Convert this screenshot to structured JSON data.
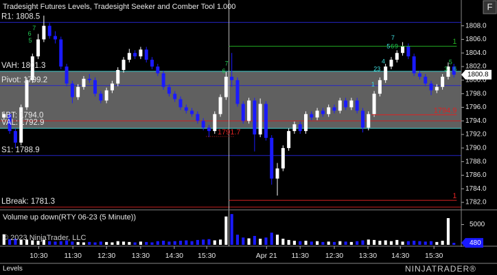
{
  "chart_data": {
    "type": "candlestick",
    "title": "Tradesight Futures Levels, Tradesight Seeker and Comber Tool 1.000",
    "volume_title": "Volume up down(RTY 06-23 (5 Minute))",
    "copyright": "© 2023 NinjaTrader, LLC",
    "tab": "Levels",
    "button": "F",
    "logo": "NINJATRADER®",
    "up_color": "#ffffff",
    "down_color": "#1a1aff",
    "open": [
      1794.5,
      1795.0,
      1792.5,
      1790.8,
      1796.0,
      1800.0,
      1803.5,
      1806.0,
      1808.0,
      1806.5,
      1806.0,
      1802.0,
      1799.5,
      1797.5,
      1799.0,
      1800.2,
      1800.0,
      1798.0,
      1797.0,
      1798.5,
      1799.5,
      1801.5,
      1803.0,
      1804.0,
      1803.5,
      1804.5,
      1803.0,
      1802.0,
      1801.0,
      1799.0,
      1798.0,
      1797.2,
      1796.0,
      1795.5,
      1795.0,
      1794.0,
      1793.0,
      1792.5,
      1795.0,
      1797.5,
      1800.5,
      1800.0,
      1796.5,
      1794.0,
      1797.0,
      1792.0,
      1796.5,
      1791.5,
      1785.5,
      1787.0,
      1790.0,
      1792.5,
      1793.5,
      1792.5,
      1795.0,
      1794.5,
      1795.5,
      1795.0,
      1796.0,
      1795.5,
      1797.0,
      1796.0,
      1797.0,
      1795.5,
      1793.0,
      1795.0,
      1798.0,
      1800.0,
      1802.0,
      1803.0,
      1804.0,
      1805.0,
      1803.5,
      1801.0,
      1800.5,
      1799.5,
      1798.5,
      1799.0,
      1800.5,
      1802.0
    ],
    "high": [
      1795.4,
      1795.4,
      1792.9,
      1796.4,
      1800.4,
      1803.9,
      1806.8,
      1809.5,
      1808.4,
      1807.2,
      1806.4,
      1802.4,
      1799.9,
      1799.4,
      1800.6,
      1800.9,
      1800.4,
      1798.4,
      1798.9,
      1799.9,
      1801.9,
      1803.4,
      1804.6,
      1804.4,
      1804.9,
      1804.9,
      1803.4,
      1802.4,
      1801.4,
      1799.4,
      1798.4,
      1797.6,
      1796.4,
      1795.9,
      1795.4,
      1794.4,
      1793.4,
      1795.4,
      1797.9,
      1801.2,
      1804.0,
      1800.4,
      1796.9,
      1797.4,
      1797.4,
      1797.3,
      1796.9,
      1791.9,
      1787.8,
      1790.4,
      1792.9,
      1793.9,
      1793.9,
      1795.4,
      1795.4,
      1795.9,
      1795.9,
      1796.4,
      1796.4,
      1797.4,
      1797.4,
      1797.4,
      1797.4,
      1795.9,
      1795.4,
      1798.4,
      1800.4,
      1802.4,
      1803.4,
      1804.4,
      1805.6,
      1805.4,
      1803.9,
      1801.4,
      1800.9,
      1799.9,
      1799.4,
      1800.9,
      1802.6,
      1802.4
    ],
    "low": [
      1794.1,
      1792.1,
      1790.0,
      1790.4,
      1795.6,
      1799.6,
      1803.1,
      1805.6,
      1806.1,
      1805.4,
      1801.6,
      1799.1,
      1796.6,
      1797.1,
      1798.6,
      1799.6,
      1797.6,
      1796.6,
      1796.6,
      1798.1,
      1799.1,
      1801.1,
      1802.6,
      1803.1,
      1803.1,
      1802.6,
      1801.6,
      1800.6,
      1798.6,
      1797.6,
      1796.8,
      1795.6,
      1795.1,
      1794.6,
      1793.6,
      1792.6,
      1791.6,
      1792.1,
      1794.6,
      1797.1,
      1799.0,
      1796.1,
      1793.6,
      1793.6,
      1789.5,
      1791.6,
      1791.1,
      1784.6,
      1783.0,
      1786.6,
      1789.6,
      1792.1,
      1792.1,
      1792.1,
      1794.1,
      1794.1,
      1794.6,
      1794.6,
      1795.1,
      1795.1,
      1795.6,
      1795.6,
      1795.1,
      1792.3,
      1792.6,
      1794.6,
      1797.6,
      1799.6,
      1801.6,
      1802.6,
      1803.6,
      1803.1,
      1800.6,
      1800.1,
      1799.1,
      1797.8,
      1798.1,
      1798.6,
      1800.1,
      1800.4
    ],
    "close": [
      1795.0,
      1792.5,
      1790.8,
      1796.0,
      1800.0,
      1803.5,
      1806.0,
      1808.0,
      1806.5,
      1806.0,
      1802.0,
      1799.5,
      1797.5,
      1799.0,
      1800.2,
      1800.0,
      1798.0,
      1797.0,
      1798.5,
      1799.5,
      1801.5,
      1803.0,
      1804.0,
      1803.5,
      1804.5,
      1803.0,
      1802.0,
      1801.0,
      1799.0,
      1798.0,
      1797.2,
      1796.0,
      1795.5,
      1795.0,
      1794.0,
      1793.0,
      1792.5,
      1795.0,
      1797.5,
      1800.5,
      1800.0,
      1796.5,
      1794.0,
      1797.0,
      1792.0,
      1796.5,
      1791.5,
      1785.5,
      1787.0,
      1790.0,
      1792.5,
      1793.5,
      1792.5,
      1795.0,
      1794.5,
      1795.5,
      1795.0,
      1796.0,
      1795.5,
      1797.0,
      1796.0,
      1797.0,
      1795.5,
      1793.0,
      1795.0,
      1798.0,
      1800.0,
      1802.0,
      1803.0,
      1804.0,
      1805.0,
      1803.5,
      1801.0,
      1800.5,
      1799.5,
      1798.5,
      1799.0,
      1800.5,
      1802.0,
      1800.8
    ],
    "volume": [
      2600,
      1400,
      1500,
      1200,
      1300,
      1100,
      1000,
      1200,
      900,
      800,
      900,
      1100,
      800,
      700,
      600,
      700,
      600,
      800,
      700,
      600,
      900,
      800,
      700,
      600,
      800,
      700,
      600,
      900,
      1000,
      800,
      900,
      1000,
      1100,
      900,
      1200,
      1300,
      1400,
      1100,
      1300,
      7000,
      7600,
      2500,
      1800,
      1600,
      2200,
      1500,
      1800,
      3000,
      2500,
      1500,
      1200,
      1000,
      900,
      1000,
      800,
      900,
      700,
      800,
      700,
      900,
      800,
      700,
      900,
      1100,
      1300,
      1200,
      1000,
      1100,
      900,
      1200,
      800,
      900,
      1000,
      900,
      800,
      900,
      700,
      1000,
      6600,
      480
    ],
    "xlim": [
      -0.7,
      80.3
    ],
    "xticks": [
      {
        "value": 6.1,
        "label": "10:30"
      },
      {
        "value": 12.1,
        "label": "11:30"
      },
      {
        "value": 18.0,
        "label": "12:30"
      },
      {
        "value": 24.0,
        "label": "13:30"
      },
      {
        "value": 29.9,
        "label": "14:30"
      },
      {
        "value": 35.6,
        "label": "15:30"
      },
      {
        "value": 46.1,
        "label": "Apr 21"
      },
      {
        "value": 52.0,
        "label": "11:30"
      },
      {
        "value": 58.0,
        "label": "12:30"
      },
      {
        "value": 63.9,
        "label": "13:30"
      },
      {
        "value": 69.6,
        "label": "14:30"
      },
      {
        "value": 75.5,
        "label": "15:30"
      }
    ],
    "ylim": [
      1781.0,
      1811.8
    ],
    "yticks": [
      {
        "value": 1782,
        "label": "1782.0"
      },
      {
        "value": 1784,
        "label": "1784.0"
      },
      {
        "value": 1786,
        "label": "1786.0"
      },
      {
        "value": 1788,
        "label": "1788.0"
      },
      {
        "value": 1790,
        "label": "1790.0"
      },
      {
        "value": 1792,
        "label": "1792.0"
      },
      {
        "value": 1794,
        "label": "1794.0"
      },
      {
        "value": 1796,
        "label": "1796.0"
      },
      {
        "value": 1798,
        "label": "1798.0"
      },
      {
        "value": 1800,
        "label": "1800.0"
      },
      {
        "value": 1802,
        "label": "1802.0"
      },
      {
        "value": 1804,
        "label": "1804.0"
      },
      {
        "value": 1806,
        "label": "1806.0"
      },
      {
        "value": 1808,
        "label": "1808.0"
      }
    ],
    "volume_ylim": [
      0,
      8300
    ],
    "volume_yticks": [
      5000
    ],
    "band": {
      "from": 1792.9,
      "to": 1801.3,
      "color": "#808080"
    },
    "levels": [
      {
        "label": "R1: 1808.5",
        "value": 1808.5,
        "color": "#2424c8"
      },
      {
        "label": "VAH: 1801.3",
        "value": 1801.3,
        "color": "#40d0d0"
      },
      {
        "label": "Pivot: 1799.2",
        "value": 1799.2,
        "color": "#2424c8"
      },
      {
        "label": "LBT: 1794.0",
        "value": 1794.0,
        "color": "#c82020"
      },
      {
        "label": "VAL: 1792.9",
        "value": 1792.9,
        "color": "#40d0d0"
      },
      {
        "label": "S1: 1788.9",
        "value": 1788.9,
        "color": "#2424c8"
      },
      {
        "label": "LBreak: 1781.3",
        "value": 1781.3,
        "color": "#c82020"
      }
    ],
    "signals": [
      {
        "label": "1",
        "value": 1805.0,
        "color": "#22aa22",
        "from": 40,
        "side": "right"
      },
      {
        "label": "1794.9",
        "value": 1794.9,
        "color": "#dd2222",
        "from": 65,
        "side": "right"
      },
      {
        "label": "1",
        "value": 1782.3,
        "color": "#dd2222",
        "from": 40,
        "side": "right"
      },
      {
        "label": "1791.7",
        "value": 1791.7,
        "color": "#dd2222",
        "from": 36,
        "side": "left",
        "dotted": true
      }
    ],
    "annotations": [
      {
        "text": "6",
        "x": 4.5,
        "price": 1806.8,
        "color": "#22cc55"
      },
      {
        "text": "7",
        "x": 5.3,
        "price": 1807.6,
        "color": "#22cc55"
      },
      {
        "text": "5",
        "x": 4.6,
        "price": 1805.8,
        "color": "#22cc55"
      },
      {
        "text": "7",
        "x": 39.1,
        "price": 1802.4,
        "color": "#22cc55"
      },
      {
        "text": "6",
        "x": 38.6,
        "price": 1801.3,
        "color": "#22cc55"
      },
      {
        "text": "1",
        "x": 64.8,
        "price": 1799.3,
        "color": "#40e0e0"
      },
      {
        "text": "23",
        "x": 65.5,
        "price": 1801.6,
        "color": "#40e0e0"
      },
      {
        "text": "4",
        "x": 66.6,
        "price": 1802.7,
        "color": "#40e0e0"
      },
      {
        "text": "5",
        "x": 67.5,
        "price": 1804.9,
        "color": "#40e0e0"
      },
      {
        "text": "6",
        "x": 68.2,
        "price": 1804.9,
        "color": "#22cc55"
      },
      {
        "text": "9",
        "x": 68.9,
        "price": 1804.9,
        "color": "#22cc55"
      },
      {
        "text": "7",
        "x": 68.3,
        "price": 1806.2,
        "color": "#40e0e0"
      },
      {
        "text": "3",
        "x": 77.6,
        "price": 1801.6,
        "color": "#22cc55"
      },
      {
        "text": "5",
        "x": 78.4,
        "price": 1802.6,
        "color": "#22cc55"
      },
      {
        "text": "6",
        "x": 79.2,
        "price": 1801.6,
        "color": "#22cc55"
      }
    ]
  }
}
